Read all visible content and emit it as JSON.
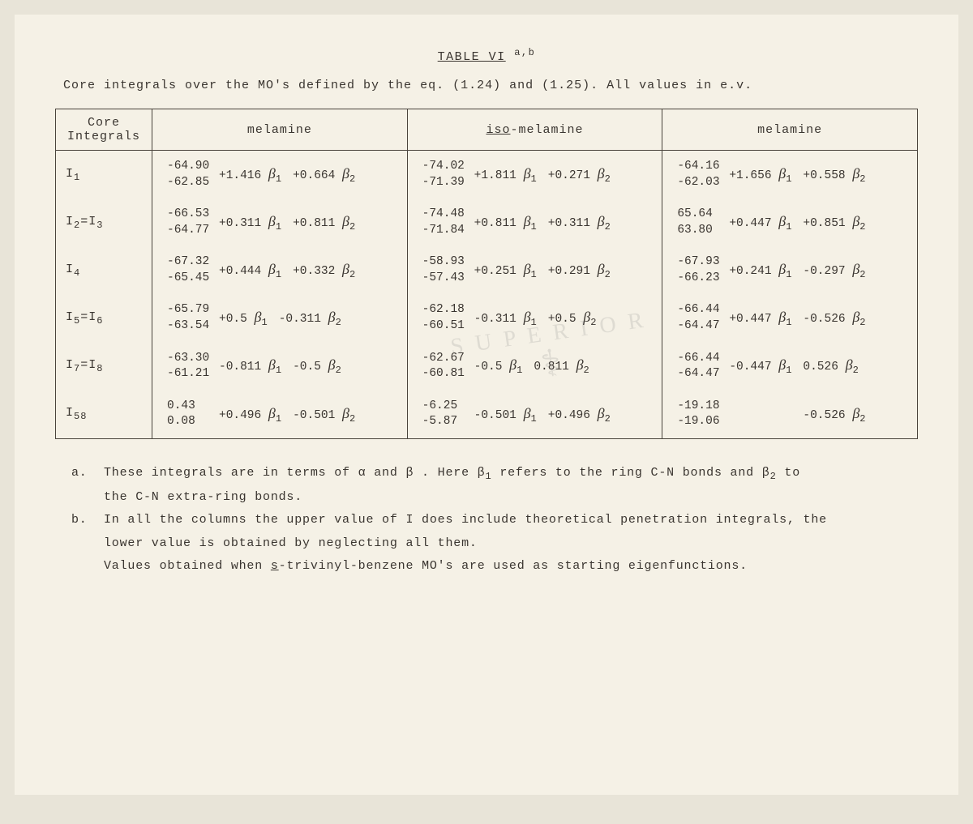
{
  "title": "TABLE VI",
  "title_sup": "a,b",
  "caption": "Core integrals over the MO's defined by the eq. (1.24) and (1.25). All values in e.v.",
  "columns": {
    "c0": "Core Integrals",
    "c1": "melamine",
    "c2_prefix": "iso",
    "c2_suffix": "-melamine",
    "c3": "melamine"
  },
  "beta1": "β",
  "beta2": "β",
  "rows": [
    {
      "label_base": "I",
      "label_sub": "1",
      "c1": {
        "top": "-64.90",
        "bot": "-62.85",
        "a": "+1.416",
        "b": "+0.664"
      },
      "c2": {
        "top": "-74.02",
        "bot": "-71.39",
        "a": "+1.811",
        "b": "+0.271"
      },
      "c3": {
        "top": "-64.16",
        "bot": "-62.03",
        "a": "+1.656",
        "b": "+0.558"
      }
    },
    {
      "label_base": "I",
      "label_sub": "2",
      "label_eq": "=I",
      "label_sub2": "3",
      "c1": {
        "top": "-66.53",
        "bot": "-64.77",
        "a": "+0.311",
        "b": "+0.811"
      },
      "c2": {
        "top": "-74.48",
        "bot": "-71.84",
        "a": "+0.811",
        "b": "+0.311"
      },
      "c3": {
        "top": " 65.64",
        "bot": " 63.80",
        "a": "+0.447",
        "b": "+0.851"
      }
    },
    {
      "label_base": "I",
      "label_sub": "4",
      "c1": {
        "top": "-67.32",
        "bot": "-65.45",
        "a": "+0.444",
        "b": "+0.332"
      },
      "c2": {
        "top": "-58.93",
        "bot": "-57.43",
        "a": "+0.251",
        "b": "+0.291"
      },
      "c3": {
        "top": "-67.93",
        "bot": "-66.23",
        "a": "+0.241",
        "b": "-0.297"
      }
    },
    {
      "label_base": "I",
      "label_sub": "5",
      "label_eq": "=I",
      "label_sub2": "6",
      "c1": {
        "top": "-65.79",
        "bot": "-63.54",
        "a": "+0.5",
        "b": "-0.311"
      },
      "c2": {
        "top": "-62.18",
        "bot": "-60.51",
        "a": "-0.311",
        "b": "+0.5"
      },
      "c3": {
        "top": "-66.44",
        "bot": "-64.47",
        "a": "+0.447",
        "b": "-0.526"
      }
    },
    {
      "label_base": "I",
      "label_sub": "7",
      "label_eq": "=I",
      "label_sub2": "8",
      "c1": {
        "top": "-63.30",
        "bot": "-61.21",
        "a": "-0.811",
        "b": "-0.5"
      },
      "c2": {
        "top": "-62.67",
        "bot": "-60.81",
        "a": "-0.5",
        "b": " 0.811"
      },
      "c3": {
        "top": "-66.44",
        "bot": "-64.47",
        "a": "-0.447",
        "b": " 0.526"
      }
    },
    {
      "label_base": "I",
      "label_sub": "58",
      "c1": {
        "top": " 0.43",
        "bot": " 0.08",
        "a": "+0.496",
        "b": "-0.501"
      },
      "c2": {
        "top": "-6.25",
        "bot": "-5.87",
        "a": "-0.501",
        "b": "+0.496"
      },
      "c3": {
        "top": "-19.18",
        "bot": "-19.06",
        "a": "",
        "b": "-0.526"
      }
    }
  ],
  "footnotes": {
    "a_label": "a.",
    "a_text1": "These integrals are in terms of α and β . Here β",
    "a_text1b": "refers to the ring C-N bonds and β",
    "a_text1c": " to",
    "a_text2": "the C-N extra-ring bonds.",
    "b_label": "b.",
    "b_text1": "In all the columns the upper value of I does include theoretical penetration integrals, the",
    "b_text2": "lower value is obtained by neglecting all them.",
    "b_text3a": "Values obtained when ",
    "b_text3_und": "s",
    "b_text3b": "-trivinyl-benzene MO's are used as starting eigenfunctions."
  },
  "watermark": "SUPERIORE"
}
